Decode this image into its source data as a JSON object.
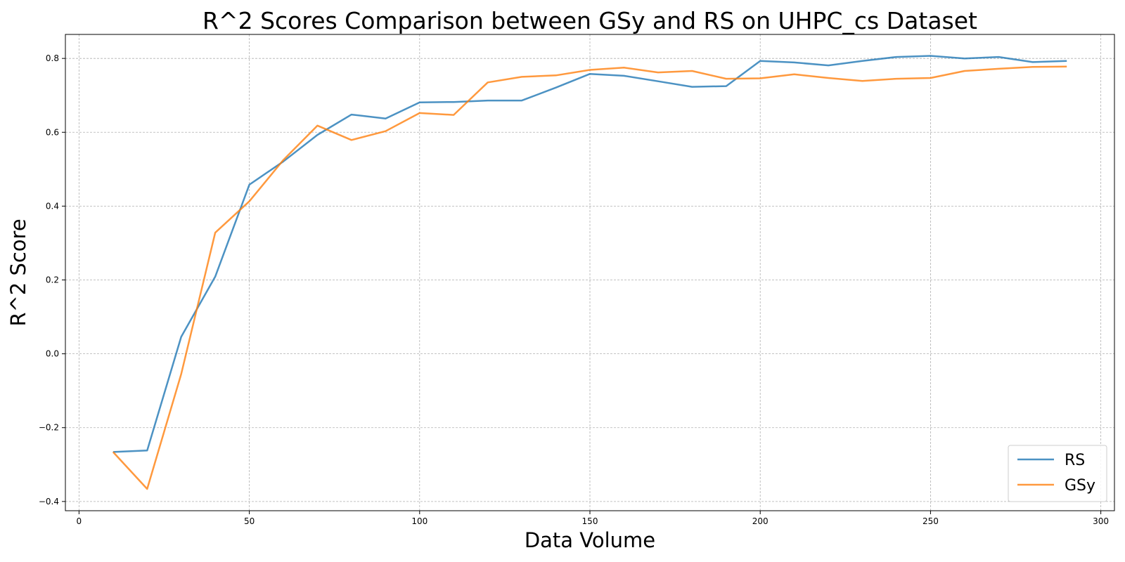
{
  "chart_data": {
    "type": "line",
    "title": "R^2 Scores Comparison between GSy and RS on UHPC_cs Dataset",
    "xlabel": "Data Volume",
    "ylabel": "R^2 Score",
    "xlim": [
      -4,
      304
    ],
    "ylim": [
      -0.425,
      0.865
    ],
    "xticks": [
      0,
      50,
      100,
      150,
      200,
      250,
      300
    ],
    "xtick_labels": [
      "0",
      "50",
      "100",
      "150",
      "200",
      "250",
      "300"
    ],
    "yticks": [
      -0.4,
      -0.2,
      0.0,
      0.2,
      0.4,
      0.6,
      0.8
    ],
    "ytick_labels": [
      "−0.4",
      "−0.2",
      "0.0",
      "0.2",
      "0.4",
      "0.6",
      "0.8"
    ],
    "grid": true,
    "legend_position": "bottom-right",
    "x": [
      10,
      20,
      30,
      40,
      50,
      60,
      70,
      80,
      90,
      100,
      110,
      120,
      130,
      140,
      150,
      160,
      170,
      180,
      190,
      200,
      210,
      220,
      230,
      240,
      250,
      260,
      270,
      280,
      290
    ],
    "series": [
      {
        "name": "RS",
        "color": "#1f77b4",
        "values": [
          -0.266,
          -0.262,
          0.046,
          0.209,
          0.458,
          0.521,
          0.593,
          0.648,
          0.637,
          0.681,
          0.682,
          0.686,
          0.686,
          0.721,
          0.758,
          0.753,
          0.738,
          0.723,
          0.725,
          0.793,
          0.789,
          0.781,
          0.793,
          0.804,
          0.807,
          0.8,
          0.804,
          0.79,
          0.793
        ]
      },
      {
        "name": "GSy",
        "color": "#ff7f0e",
        "values": [
          -0.266,
          -0.366,
          -0.055,
          0.328,
          0.413,
          0.525,
          0.618,
          0.579,
          0.603,
          0.652,
          0.647,
          0.735,
          0.75,
          0.754,
          0.769,
          0.775,
          0.762,
          0.766,
          0.745,
          0.746,
          0.757,
          0.747,
          0.739,
          0.745,
          0.747,
          0.766,
          0.772,
          0.777,
          0.778
        ]
      }
    ]
  }
}
